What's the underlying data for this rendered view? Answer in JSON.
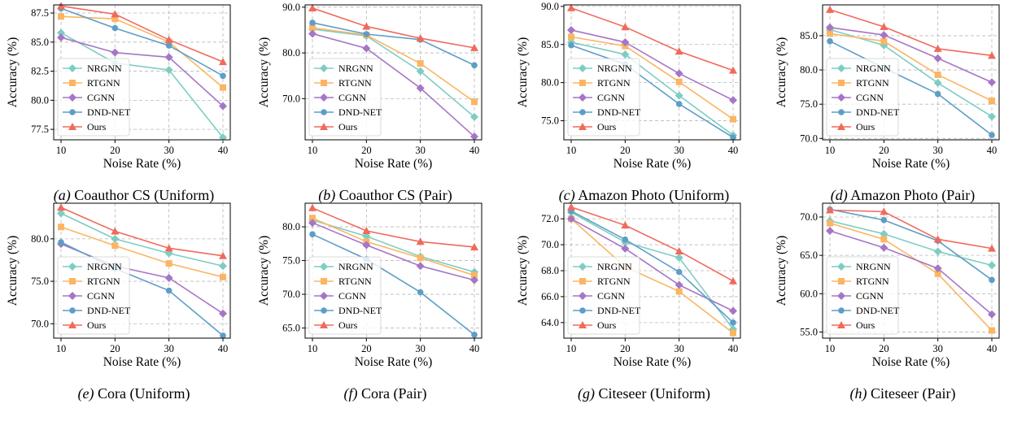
{
  "colors": {
    "NRGNN": "#7ecdc3",
    "RTGNN": "#fbb563",
    "CGNN": "#a676c6",
    "DND-NET": "#5d9ec6",
    "Ours": "#f06a5c"
  },
  "chart_data": [
    {
      "type": "line",
      "letter": "(a)",
      "caption": "Coauthor CS (Uniform)",
      "xlabel": "Noise Rate (%)",
      "ylabel": "Accuracy (%)",
      "x": [
        10,
        20,
        30,
        40
      ],
      "ylim": [
        76.6,
        88.2
      ],
      "yticks": [
        77.5,
        80.0,
        82.5,
        85.0,
        87.5
      ],
      "grid": true,
      "legend": "lower-left",
      "series": [
        {
          "name": "NRGNN",
          "values": [
            85.8,
            83.2,
            82.6,
            76.8
          ]
        },
        {
          "name": "RTGNN",
          "values": [
            87.2,
            87.0,
            85.0,
            81.1
          ]
        },
        {
          "name": "CGNN",
          "values": [
            85.4,
            84.1,
            83.7,
            79.5
          ]
        },
        {
          "name": "DND-NET",
          "values": [
            87.9,
            86.2,
            84.7,
            82.1
          ]
        },
        {
          "name": "Ours",
          "values": [
            88.1,
            87.4,
            85.2,
            83.3
          ]
        }
      ]
    },
    {
      "type": "line",
      "letter": "(b)",
      "caption": "Coauthor CS (Pair)",
      "xlabel": "Noise Rate (%)",
      "ylabel": "Accuracy (%)",
      "x": [
        10,
        20,
        30,
        40
      ],
      "ylim": [
        61,
        90.5
      ],
      "yticks": [
        70.0,
        80.0,
        90.0
      ],
      "grid": true,
      "legend": "lower-left",
      "series": [
        {
          "name": "NRGNN",
          "values": [
            85.2,
            83.7,
            76.0,
            66.0
          ]
        },
        {
          "name": "RTGNN",
          "values": [
            85.5,
            83.9,
            77.7,
            69.3
          ]
        },
        {
          "name": "CGNN",
          "values": [
            84.2,
            81.0,
            72.3,
            61.7
          ]
        },
        {
          "name": "DND-NET",
          "values": [
            86.6,
            84.1,
            82.9,
            77.3
          ]
        },
        {
          "name": "Ours",
          "values": [
            89.8,
            85.8,
            83.2,
            81.1
          ]
        }
      ]
    },
    {
      "type": "line",
      "letter": "(c)",
      "caption": "Amazon Photo (Uniform)",
      "xlabel": "Noise Rate (%)",
      "ylabel": "Accuracy (%)",
      "x": [
        10,
        20,
        30,
        40
      ],
      "ylim": [
        72.5,
        90.2
      ],
      "yticks": [
        75.0,
        80.0,
        85.0,
        90.0
      ],
      "grid": true,
      "legend": "lower-left",
      "series": [
        {
          "name": "NRGNN",
          "values": [
            85.3,
            83.7,
            78.3,
            73.1
          ]
        },
        {
          "name": "RTGNN",
          "values": [
            86.0,
            84.8,
            80.1,
            75.2
          ]
        },
        {
          "name": "CGNN",
          "values": [
            86.9,
            85.3,
            81.2,
            77.7
          ]
        },
        {
          "name": "DND-NET",
          "values": [
            84.9,
            82.4,
            77.2,
            72.8
          ]
        },
        {
          "name": "Ours",
          "values": [
            89.8,
            87.3,
            84.1,
            81.6
          ]
        }
      ]
    },
    {
      "type": "line",
      "letter": "(d)",
      "caption": "Amazon Photo (Pair)",
      "xlabel": "Noise Rate (%)",
      "ylabel": "Accuracy (%)",
      "x": [
        10,
        20,
        30,
        40
      ],
      "ylim": [
        69.8,
        89.5
      ],
      "yticks": [
        70.0,
        75.0,
        80.0,
        85.0
      ],
      "grid": true,
      "legend": "lower-left",
      "series": [
        {
          "name": "NRGNN",
          "values": [
            85.9,
            83.6,
            78.1,
            73.2
          ]
        },
        {
          "name": "RTGNN",
          "values": [
            85.3,
            84.2,
            79.3,
            75.5
          ]
        },
        {
          "name": "CGNN",
          "values": [
            86.2,
            85.1,
            81.7,
            78.2
          ]
        },
        {
          "name": "DND-NET",
          "values": [
            84.2,
            80.3,
            76.5,
            70.5
          ]
        },
        {
          "name": "Ours",
          "values": [
            88.8,
            86.3,
            83.1,
            82.1
          ]
        }
      ]
    },
    {
      "type": "line",
      "letter": "(e)",
      "caption": "Cora (Uniform)",
      "xlabel": "Noise Rate (%)",
      "ylabel": "Accuracy (%)",
      "x": [
        10,
        20,
        30,
        40
      ],
      "ylim": [
        68.3,
        84.2
      ],
      "yticks": [
        70.0,
        75.0,
        80.0
      ],
      "grid": true,
      "legend": "lower-left",
      "series": [
        {
          "name": "NRGNN",
          "values": [
            83.0,
            80.0,
            78.3,
            76.8
          ]
        },
        {
          "name": "RTGNN",
          "values": [
            81.4,
            79.2,
            77.1,
            75.5
          ]
        },
        {
          "name": "CGNN",
          "values": [
            79.4,
            76.8,
            75.4,
            71.2
          ]
        },
        {
          "name": "DND-NET",
          "values": [
            79.6,
            76.5,
            73.9,
            68.6
          ]
        },
        {
          "name": "Ours",
          "values": [
            83.7,
            80.9,
            78.9,
            78.0
          ]
        }
      ]
    },
    {
      "type": "line",
      "letter": "(f)",
      "caption": "Cora (Pair)",
      "xlabel": "Noise Rate (%)",
      "ylabel": "Accuracy (%)",
      "x": [
        10,
        20,
        30,
        40
      ],
      "ylim": [
        63.5,
        83.5
      ],
      "yticks": [
        65.0,
        70.0,
        75.0,
        80.0
      ],
      "grid": true,
      "legend": "lower-left",
      "series": [
        {
          "name": "NRGNN",
          "values": [
            81.0,
            78.6,
            75.6,
            73.3
          ]
        },
        {
          "name": "RTGNN",
          "values": [
            81.3,
            77.8,
            75.4,
            72.8
          ]
        },
        {
          "name": "CGNN",
          "values": [
            80.6,
            77.3,
            74.2,
            72.1
          ]
        },
        {
          "name": "DND-NET",
          "values": [
            78.9,
            75.2,
            70.3,
            64.0
          ]
        },
        {
          "name": "Ours",
          "values": [
            82.8,
            79.4,
            77.8,
            77.0
          ]
        }
      ]
    },
    {
      "type": "line",
      "letter": "(g)",
      "caption": "Citeseer (Uniform)",
      "xlabel": "Noise Rate (%)",
      "ylabel": "Accuracy (%)",
      "x": [
        10,
        20,
        30,
        40
      ],
      "ylim": [
        62.8,
        73.2
      ],
      "yticks": [
        64.0,
        66.0,
        68.0,
        70.0,
        72.0
      ],
      "grid": true,
      "legend": "lower-left",
      "series": [
        {
          "name": "NRGNN",
          "values": [
            72.5,
            70.2,
            69.0,
            63.5
          ]
        },
        {
          "name": "RTGNN",
          "values": [
            72.0,
            68.3,
            66.4,
            63.2
          ]
        },
        {
          "name": "CGNN",
          "values": [
            72.0,
            69.7,
            66.9,
            64.9
          ]
        },
        {
          "name": "DND-NET",
          "values": [
            72.6,
            70.4,
            67.9,
            64.0
          ]
        },
        {
          "name": "Ours",
          "values": [
            72.9,
            71.5,
            69.5,
            67.2
          ]
        }
      ]
    },
    {
      "type": "line",
      "letter": "(h)",
      "caption": "Citeseer (Pair)",
      "xlabel": "Noise Rate (%)",
      "ylabel": "Accuracy (%)",
      "x": [
        10,
        20,
        30,
        40
      ],
      "ylim": [
        54.2,
        71.8
      ],
      "yticks": [
        55.0,
        60.0,
        65.0,
        70.0
      ],
      "grid": true,
      "legend": "lower-left",
      "series": [
        {
          "name": "NRGNN",
          "values": [
            69.5,
            67.8,
            65.5,
            63.7
          ]
        },
        {
          "name": "RTGNN",
          "values": [
            69.2,
            67.1,
            62.6,
            55.2
          ]
        },
        {
          "name": "CGNN",
          "values": [
            68.2,
            66.0,
            63.3,
            57.3
          ]
        },
        {
          "name": "DND-NET",
          "values": [
            71.0,
            69.6,
            66.9,
            61.8
          ]
        },
        {
          "name": "Ours",
          "values": [
            70.9,
            70.7,
            67.1,
            65.9
          ]
        }
      ]
    }
  ]
}
